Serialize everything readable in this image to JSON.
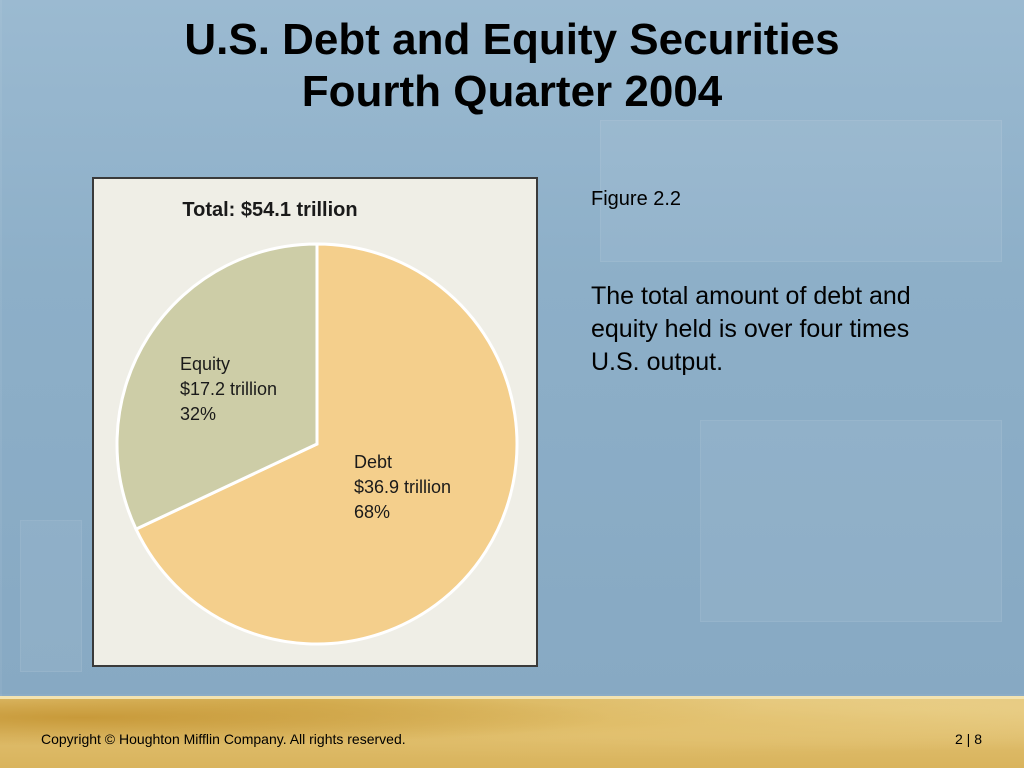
{
  "slide": {
    "title_line1": "U.S. Debt and Equity Securities",
    "title_line2": "Fourth Quarter 2004",
    "caption": "Figure 2.2",
    "note": "The total amount of debt and equity held is over four times U.S. output.",
    "copyright": "Copyright © Houghton Mifflin Company.  All rights reserved.",
    "page": "2 | 8"
  },
  "chart_data": {
    "type": "pie",
    "title": "Total: $54.1 trillion",
    "slices": [
      {
        "name": "Debt",
        "amount": "$36.9 trillion",
        "percent_label": "68%",
        "value": 68,
        "color": "#f4cf8c"
      },
      {
        "name": "Equity",
        "amount": "$17.2 trillion",
        "percent_label": "32%",
        "value": 32,
        "color": "#cdcda7"
      }
    ],
    "values": [
      36.9,
      17.2
    ],
    "legend": "none"
  },
  "colors": {
    "background": "#8fb0c8",
    "figure_background": "#efeee6",
    "slice_border": "#ffffff"
  }
}
